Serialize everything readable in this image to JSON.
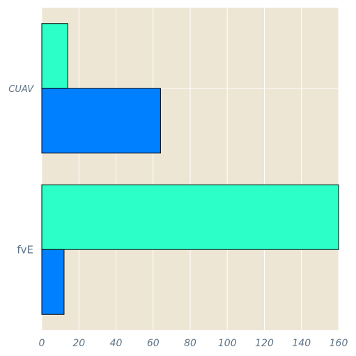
{
  "chart_data": {
    "type": "bar",
    "orientation": "horizontal",
    "categories": [
      "CUAV",
      "fvE"
    ],
    "category_label_styles": [
      "italic",
      "normal"
    ],
    "series": [
      {
        "values": [
          14,
          161
        ],
        "color": "#2dffc8"
      },
      {
        "values": [
          64,
          12
        ],
        "color": "#0080ff"
      }
    ],
    "xlim": [
      0,
      160
    ],
    "x_ticks": [
      "0",
      "20",
      "40",
      "60",
      "80",
      "100",
      "120",
      "140",
      "160"
    ],
    "grid": true,
    "background": "#ede6d4",
    "grid_color": "#ffffff",
    "bar_edge_color": "#000000"
  }
}
